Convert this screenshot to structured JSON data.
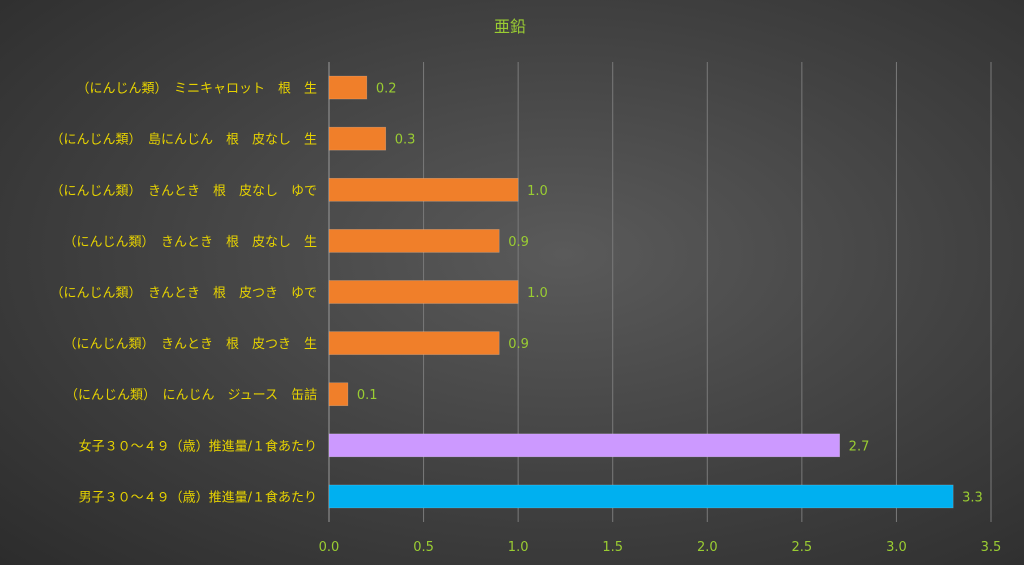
{
  "chart_data": {
    "type": "bar",
    "orientation": "horizontal",
    "title": "亜鉛",
    "categories": [
      "（にんじん類）　ミニキャロット　根　生",
      "（にんじん類）　島にんじん　根　皮なし　生",
      "（にんじん類）　きんとき　根　皮なし　ゆで",
      "（にんじん類）　きんとき　根　皮なし　生",
      "（にんじん類）　きんとき　根　皮つき　ゆで",
      "（にんじん類）　きんとき　根　皮つき　生",
      "（にんじん類）　にんじん　ジュース　缶詰",
      "女子３０～４９（歳）推進量/１食あたり",
      "男子３０～４９（歳）推進量/１食あたり"
    ],
    "values": [
      0.2,
      0.3,
      1.0,
      0.9,
      1.0,
      0.9,
      0.1,
      2.7,
      3.3
    ],
    "value_labels": [
      "0.2",
      "0.3",
      "1.0",
      "0.9",
      "1.0",
      "0.9",
      "0.1",
      "2.7",
      "3.3"
    ],
    "bar_colors": [
      "#f07f2a",
      "#f07f2a",
      "#f07f2a",
      "#f07f2a",
      "#f07f2a",
      "#f07f2a",
      "#f07f2a",
      "#cc99ff",
      "#00b0f0"
    ],
    "xlim": [
      0,
      3.5
    ],
    "xticks": [
      "0.0",
      "0.5",
      "1.0",
      "1.5",
      "2.0",
      "2.5",
      "3.0",
      "3.5"
    ],
    "grid": true,
    "legend": "none"
  }
}
